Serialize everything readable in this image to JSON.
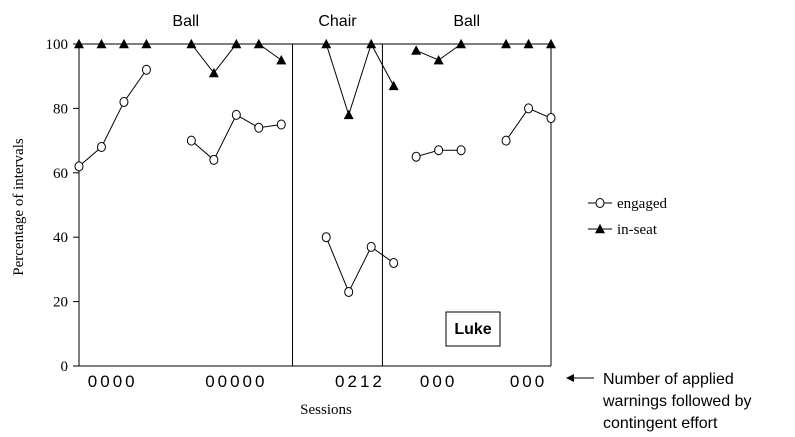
{
  "chart_data": {
    "type": "line",
    "ylabel": "Percentage of intervals",
    "xlabel": "Sessions",
    "ylim": [
      0,
      100
    ],
    "yticks": [
      0,
      20,
      40,
      60,
      80,
      100
    ],
    "phases": [
      {
        "label": "Ball",
        "sessions": [
          1,
          2,
          3,
          4,
          5,
          6,
          7,
          8,
          9,
          10
        ]
      },
      {
        "label": "Chair",
        "sessions": [
          11,
          12,
          13,
          14
        ]
      },
      {
        "label": "Ball",
        "sessions": [
          15,
          16,
          17,
          18,
          19,
          20,
          21,
          22
        ]
      }
    ],
    "series": [
      {
        "name": "engaged",
        "marker": "open-circle",
        "segments": [
          [
            [
              1,
              62
            ],
            [
              2,
              68
            ],
            [
              3,
              82
            ],
            [
              4,
              92
            ]
          ],
          [
            [
              6,
              70
            ],
            [
              7,
              64
            ],
            [
              8,
              78
            ],
            [
              9,
              74
            ],
            [
              10,
              75
            ]
          ],
          [
            [
              12,
              40
            ],
            [
              13,
              23
            ],
            [
              14,
              37
            ],
            [
              15,
              32
            ]
          ],
          [
            [
              16,
              65
            ],
            [
              17,
              67
            ],
            [
              18,
              67
            ]
          ],
          [
            [
              20,
              70
            ],
            [
              21,
              80
            ],
            [
              22,
              77
            ]
          ]
        ]
      },
      {
        "name": "in-seat",
        "marker": "filled-triangle",
        "segments": [
          [
            [
              1,
              100
            ],
            [
              2,
              100
            ],
            [
              3,
              100
            ],
            [
              4,
              100
            ]
          ],
          [
            [
              6,
              100
            ],
            [
              7,
              91
            ],
            [
              8,
              100
            ],
            [
              9,
              100
            ],
            [
              10,
              95
            ]
          ],
          [
            [
              12,
              100
            ],
            [
              13,
              78
            ],
            [
              14,
              100
            ],
            [
              15,
              87
            ]
          ],
          [
            [
              16,
              98
            ],
            [
              17,
              95
            ],
            [
              18,
              100
            ]
          ],
          [
            [
              20,
              100
            ],
            [
              21,
              100
            ],
            [
              22,
              100
            ]
          ]
        ]
      }
    ],
    "warnings_rows": [
      {
        "text": "0000",
        "sessions": [
          1,
          4
        ]
      },
      {
        "text": "00000",
        "sessions": [
          6,
          10
        ]
      },
      {
        "text": "0212",
        "sessions": [
          12,
          15
        ]
      },
      {
        "text": "000",
        "sessions": [
          16,
          18
        ]
      },
      {
        "text": "000",
        "sessions": [
          20,
          22
        ]
      }
    ],
    "legend_position": "right",
    "participant_label": "Luke",
    "annotation": [
      "Number of applied",
      "warnings followed by",
      "contingent effort"
    ]
  }
}
